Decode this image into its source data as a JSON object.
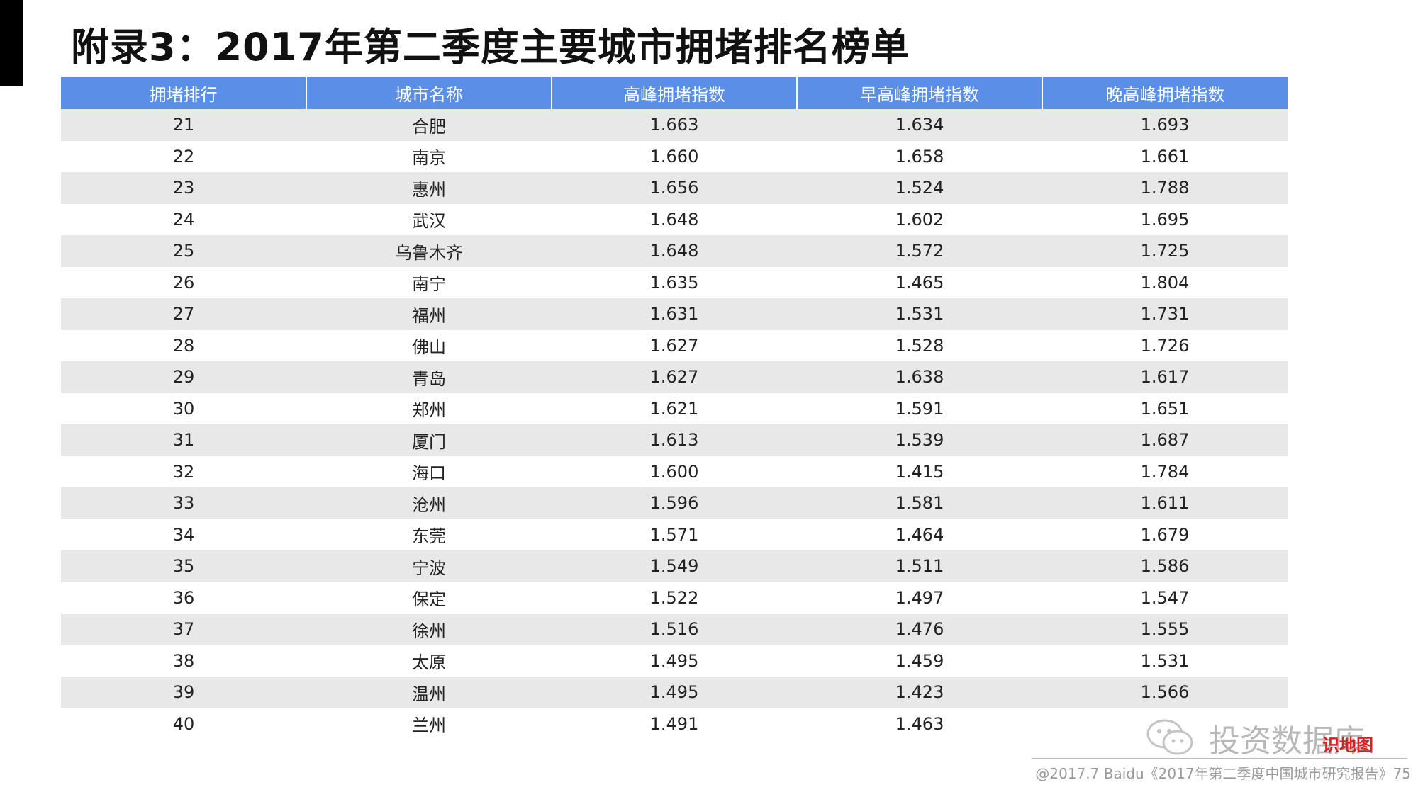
{
  "page": {
    "title": "附录3：2017年第二季度主要城市拥堵排名榜单"
  },
  "table": {
    "headers": [
      "拥堵排行",
      "城市名称",
      "高峰拥堵指数",
      "早高峰拥堵指数",
      "晚高峰拥堵指数"
    ],
    "rows": [
      [
        "21",
        "合肥",
        "1.663",
        "1.634",
        "1.693"
      ],
      [
        "22",
        "南京",
        "1.660",
        "1.658",
        "1.661"
      ],
      [
        "23",
        "惠州",
        "1.656",
        "1.524",
        "1.788"
      ],
      [
        "24",
        "武汉",
        "1.648",
        "1.602",
        "1.695"
      ],
      [
        "25",
        "乌鲁木齐",
        "1.648",
        "1.572",
        "1.725"
      ],
      [
        "26",
        "南宁",
        "1.635",
        "1.465",
        "1.804"
      ],
      [
        "27",
        "福州",
        "1.631",
        "1.531",
        "1.731"
      ],
      [
        "28",
        "佛山",
        "1.627",
        "1.528",
        "1.726"
      ],
      [
        "29",
        "青岛",
        "1.627",
        "1.638",
        "1.617"
      ],
      [
        "30",
        "郑州",
        "1.621",
        "1.591",
        "1.651"
      ],
      [
        "31",
        "厦门",
        "1.613",
        "1.539",
        "1.687"
      ],
      [
        "32",
        "海口",
        "1.600",
        "1.415",
        "1.784"
      ],
      [
        "33",
        "沧州",
        "1.596",
        "1.581",
        "1.611"
      ],
      [
        "34",
        "东莞",
        "1.571",
        "1.464",
        "1.679"
      ],
      [
        "35",
        "宁波",
        "1.549",
        "1.511",
        "1.586"
      ],
      [
        "36",
        "保定",
        "1.522",
        "1.497",
        "1.547"
      ],
      [
        "37",
        "徐州",
        "1.516",
        "1.476",
        "1.555"
      ],
      [
        "38",
        "太原",
        "1.495",
        "1.459",
        "1.531"
      ],
      [
        "39",
        "温州",
        "1.495",
        "1.423",
        "1.566"
      ],
      [
        "40",
        "兰州",
        "1.491",
        "1.463",
        ""
      ]
    ]
  },
  "footer": {
    "source": "@2017.7 Baidu《2017年第二季度中国城市研究报告》75"
  },
  "watermark": {
    "text": "投资数据库",
    "badge": "识地图",
    "icon": "wechat-icon"
  },
  "colors": {
    "header_bg": "#5b8fe7",
    "row_alt_bg": "#e8e8e8",
    "accent_bar": "#000000"
  }
}
